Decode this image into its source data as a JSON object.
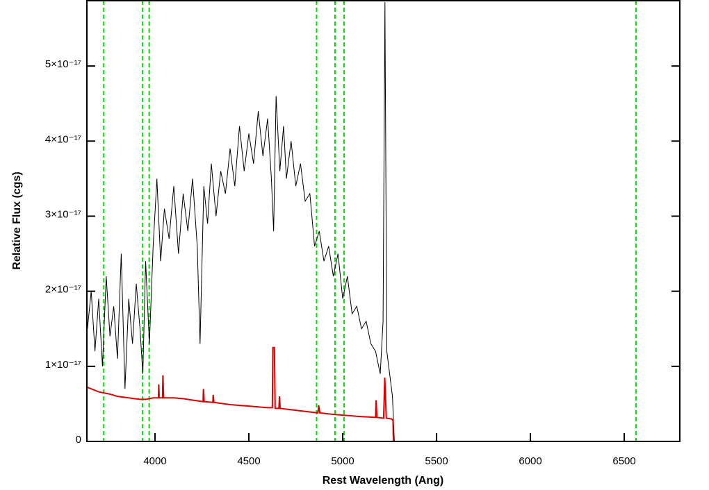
{
  "chart_data": {
    "type": "line",
    "x_label": "Rest Wavelength (Ang)",
    "y_label": "Relative Flux (cgs)",
    "xlim": [
      3637,
      6796
    ],
    "ylim": [
      0,
      5.87e-17
    ],
    "xticks": [
      4000,
      4500,
      5000,
      5500,
      6000,
      6500
    ],
    "yticks": [
      0,
      {
        "value": 1e-17,
        "label": "1×10⁻¹⁷"
      },
      {
        "value": 2e-17,
        "label": "2×10⁻¹⁷"
      },
      {
        "value": 3e-17,
        "label": "3×10⁻¹⁷"
      },
      {
        "value": 4e-17,
        "label": "4×10⁻¹⁷"
      },
      {
        "value": 5e-17,
        "label": "5×10⁻¹⁷"
      }
    ],
    "reference_lines": {
      "color": "#00dd00",
      "values": [
        3727,
        3934,
        3969,
        4861,
        4959,
        5007,
        6563
      ]
    },
    "series": [
      {
        "color": "#000000",
        "x": [
          3640,
          3660,
          3680,
          3700,
          3720,
          3740,
          3760,
          3780,
          3800,
          3820,
          3840,
          3860,
          3880,
          3900,
          3920,
          3935,
          3950,
          3970,
          3990,
          4010,
          4030,
          4050,
          4075,
          4100,
          4125,
          4150,
          4175,
          4200,
          4225,
          4240,
          4260,
          4280,
          4300,
          4325,
          4350,
          4375,
          4400,
          4425,
          4450,
          4475,
          4500,
          4525,
          4550,
          4575,
          4600,
          4620,
          4632,
          4645,
          4665,
          4685,
          4700,
          4725,
          4750,
          4775,
          4800,
          4825,
          4850,
          4875,
          4900,
          4925,
          4950,
          4975,
          5000,
          5025,
          5050,
          5075,
          5100,
          5125,
          5150,
          5175,
          5200,
          5215,
          5225,
          5235,
          5250,
          5265,
          5275,
          6796
        ],
        "values": [
          1.5e-17,
          2e-17,
          1.2e-17,
          1.9e-17,
          1e-17,
          2.2e-17,
          1.4e-17,
          1.8e-17,
          1.1e-17,
          2.5e-17,
          7e-18,
          1.9e-17,
          1.3e-17,
          2.1e-17,
          1.5e-17,
          9e-18,
          2.4e-17,
          1.3e-17,
          2.6e-17,
          3.5e-17,
          2.4e-17,
          3.1e-17,
          2.7e-17,
          3.4e-17,
          2.5e-17,
          3.3e-17,
          2.8e-17,
          3.5e-17,
          2.6e-17,
          1.3e-17,
          3.4e-17,
          2.9e-17,
          3.7e-17,
          3e-17,
          3.6e-17,
          3.3e-17,
          3.9e-17,
          3.4e-17,
          4.2e-17,
          3.6e-17,
          4.1e-17,
          3.7e-17,
          4.4e-17,
          3.8e-17,
          4.3e-17,
          3.5e-17,
          2.8e-17,
          4.6e-17,
          3.6e-17,
          4.2e-17,
          3.5e-17,
          4e-17,
          3.4e-17,
          3.7e-17,
          3.2e-17,
          3.3e-17,
          2.6e-17,
          2.8e-17,
          2.4e-17,
          2.6e-17,
          2.2e-17,
          2.5e-17,
          1.9e-17,
          2.2e-17,
          1.7e-17,
          1.8e-17,
          1.5e-17,
          1.6e-17,
          1.3e-17,
          1.2e-17,
          9e-18,
          1.6e-17,
          5.85e-17,
          1.2e-17,
          9e-18,
          6e-18,
          0,
          0
        ]
      },
      {
        "color": "#dd0000",
        "x": [
          3640,
          3700,
          3760,
          3800,
          3860,
          3920,
          3950,
          3990,
          4018,
          4020,
          4022,
          4040,
          4042,
          4046,
          4100,
          4150,
          4200,
          4256,
          4258,
          4262,
          4308,
          4310,
          4314,
          4400,
          4500,
          4600,
          4625,
          4628,
          4636,
          4640,
          4660,
          4663,
          4667,
          4700,
          4800,
          4868,
          4872,
          4878,
          4950,
          5000,
          5100,
          5175,
          5178,
          5182,
          5218,
          5224,
          5232,
          5260,
          5268,
          5270,
          6796
        ],
        "values": [
          7.2e-18,
          6.6e-18,
          6.3e-18,
          6e-18,
          5.8e-18,
          5.6e-18,
          5.6e-18,
          5.8e-18,
          5.8e-18,
          7.6e-18,
          5.8e-18,
          5.8e-18,
          8.8e-18,
          5.8e-18,
          5.8e-18,
          5.7e-18,
          5.5e-18,
          5.3e-18,
          7e-18,
          5.3e-18,
          5.2e-18,
          6.2e-18,
          5.2e-18,
          4.9e-18,
          4.7e-18,
          4.5e-18,
          4.5e-18,
          1.25e-17,
          1.25e-17,
          4.4e-18,
          4.4e-18,
          6e-18,
          4.4e-18,
          4.3e-18,
          4e-18,
          3.8e-18,
          4.8e-18,
          3.8e-18,
          3.6e-18,
          3.5e-18,
          3.3e-18,
          3.2e-18,
          5.5e-18,
          3.2e-18,
          3.1e-18,
          8.5e-18,
          3.1e-18,
          3e-18,
          2.8e-18,
          0,
          0
        ]
      }
    ]
  }
}
